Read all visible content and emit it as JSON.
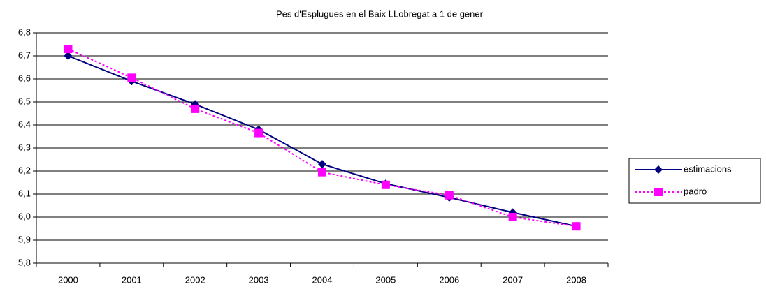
{
  "chart_data": {
    "type": "line",
    "title": "Pes d'Esplugues en el Baix LLobregat a 1 de gener",
    "categories": [
      "2000",
      "2001",
      "2002",
      "2003",
      "2004",
      "2005",
      "2006",
      "2007",
      "2008"
    ],
    "series": [
      {
        "name": "estimacions",
        "color": "#000080",
        "marker": "diamond",
        "dash": "solid",
        "values": [
          6.7,
          6.59,
          6.49,
          6.38,
          6.23,
          6.145,
          6.085,
          6.02,
          5.96
        ]
      },
      {
        "name": "padró",
        "color": "#ff00ff",
        "marker": "square",
        "dash": "dotted",
        "values": [
          6.73,
          6.605,
          6.47,
          6.365,
          6.195,
          6.14,
          6.095,
          6.0,
          5.96
        ]
      }
    ],
    "ylim": [
      5.8,
      6.8
    ],
    "yticks": [
      {
        "value": 5.8,
        "label": "5,8"
      },
      {
        "value": 5.9,
        "label": "5,9"
      },
      {
        "value": 6.0,
        "label": "6,0"
      },
      {
        "value": 6.1,
        "label": "6,1"
      },
      {
        "value": 6.2,
        "label": "6,2"
      },
      {
        "value": 6.3,
        "label": "6,3"
      },
      {
        "value": 6.4,
        "label": "6,4"
      },
      {
        "value": 6.5,
        "label": "6,5"
      },
      {
        "value": 6.6,
        "label": "6,6"
      },
      {
        "value": 6.7,
        "label": "6,7"
      },
      {
        "value": 6.8,
        "label": "6,8"
      }
    ],
    "grid": true,
    "legend": "right"
  }
}
